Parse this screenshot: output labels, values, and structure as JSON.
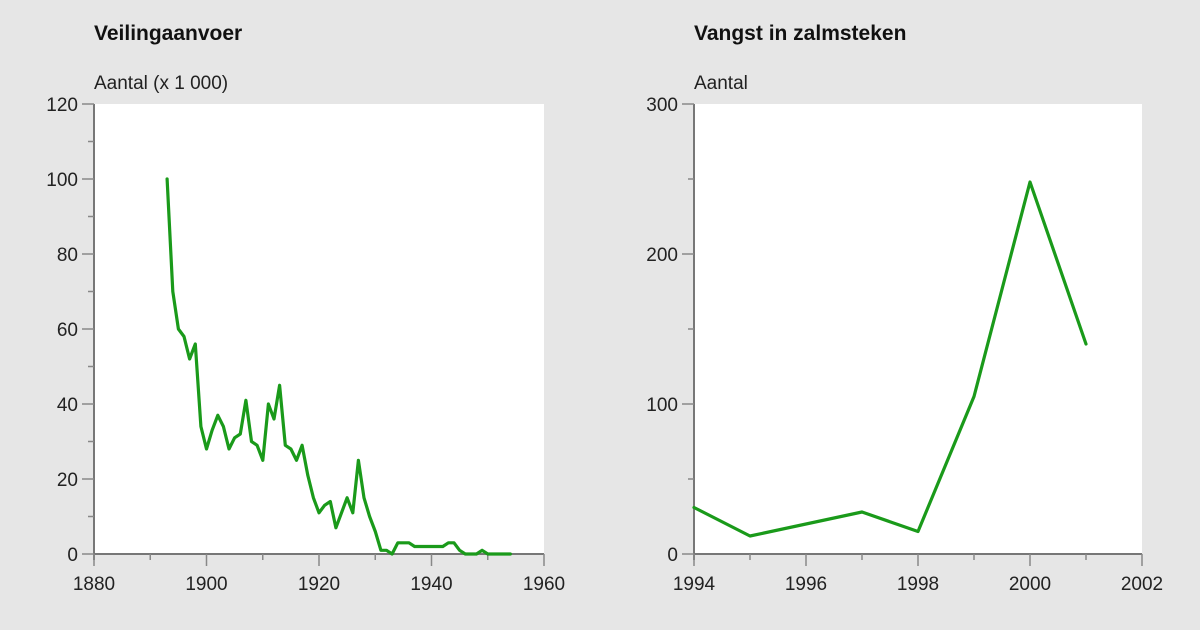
{
  "chart_data": [
    {
      "type": "line",
      "title": "Veilingaanvoer",
      "ylabel": "Aantal (x 1 000)",
      "xlabel": "",
      "xlim": [
        1880,
        1960
      ],
      "ylim": [
        0,
        120
      ],
      "xticks": [
        1880,
        1900,
        1920,
        1940,
        1960
      ],
      "yticks": [
        0,
        20,
        40,
        60,
        80,
        100,
        120
      ],
      "grid": false,
      "legend": null,
      "line_color": "#1a9a1a",
      "series": [
        {
          "name": "Veilingaanvoer",
          "x": [
            1893,
            1894,
            1895,
            1896,
            1897,
            1898,
            1899,
            1900,
            1901,
            1902,
            1903,
            1904,
            1905,
            1906,
            1907,
            1908,
            1909,
            1910,
            1911,
            1912,
            1913,
            1914,
            1915,
            1916,
            1917,
            1918,
            1919,
            1920,
            1921,
            1922,
            1923,
            1924,
            1925,
            1926,
            1927,
            1928,
            1929,
            1930,
            1931,
            1932,
            1933,
            1934,
            1935,
            1936,
            1937,
            1938,
            1939,
            1940,
            1941,
            1942,
            1943,
            1944,
            1945,
            1946,
            1947,
            1948,
            1949,
            1950,
            1951,
            1952,
            1953,
            1954
          ],
          "values": [
            100,
            70,
            60,
            58,
            52,
            56,
            34,
            28,
            33,
            37,
            34,
            28,
            31,
            32,
            41,
            30,
            29,
            25,
            40,
            36,
            45,
            29,
            28,
            25,
            29,
            21,
            15,
            11,
            13,
            14,
            7,
            11,
            15,
            11,
            25,
            15,
            10,
            6,
            1,
            1,
            0,
            3,
            3,
            3,
            2,
            2,
            2,
            2,
            2,
            2,
            3,
            3,
            1,
            0,
            0,
            0,
            1,
            0,
            0,
            0,
            0,
            0
          ]
        }
      ]
    },
    {
      "type": "line",
      "title": "Vangst in zalmsteken",
      "ylabel": "Aantal",
      "xlabel": "",
      "xlim": [
        1994,
        2002
      ],
      "ylim": [
        0,
        300
      ],
      "xticks": [
        1994,
        1996,
        1998,
        2000,
        2002
      ],
      "yticks": [
        0,
        100,
        200,
        300
      ],
      "grid": false,
      "legend": null,
      "line_color": "#1a9a1a",
      "series": [
        {
          "name": "Vangst in zalmsteken",
          "x": [
            1994,
            1995,
            1997,
            1998,
            1999,
            2000,
            2001
          ],
          "values": [
            31,
            12,
            28,
            15,
            105,
            248,
            140
          ]
        }
      ]
    }
  ],
  "left_chart": {
    "title": "Veilingaanvoer",
    "unit_label": "Aantal (x 1 000)"
  },
  "right_chart": {
    "title": "Vangst in zalmsteken",
    "unit_label": "Aantal"
  }
}
